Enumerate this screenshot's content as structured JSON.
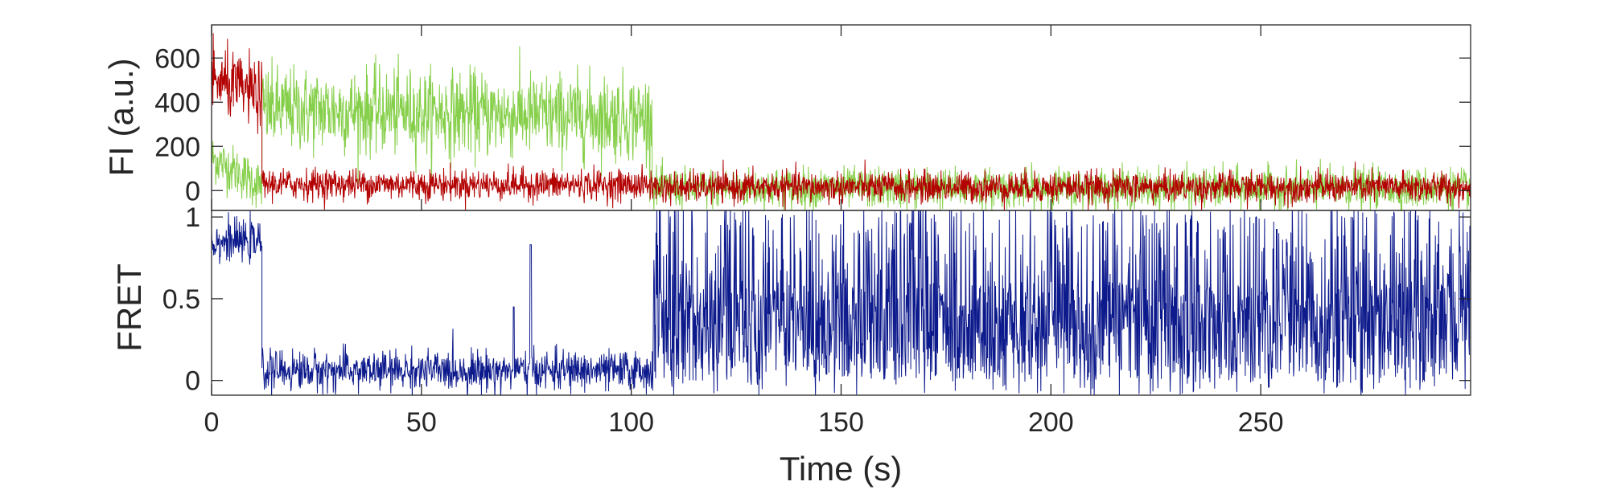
{
  "colors": {
    "acceptor": "#b30000",
    "donor": "#86cf4a",
    "fret": "#0d1a8c",
    "axes": "#262626",
    "background": "#ffffff"
  },
  "chart_data": [
    {
      "type": "line",
      "panel": "top",
      "title": "",
      "xlabel": "",
      "ylabel": "FI (a.u.)",
      "xlim": [
        0,
        300
      ],
      "ylim": [
        -90,
        750
      ],
      "xticks": [
        0,
        50,
        100,
        150,
        200,
        250
      ],
      "yticks": [
        0,
        200,
        400,
        600
      ],
      "ytick_labels": [
        "0",
        "200",
        "400",
        "600"
      ],
      "grid": false,
      "legend": "none",
      "segments_note_free": true,
      "series": [
        {
          "color_key": "donor",
          "segments": [
            {
              "x_start": 0,
              "x_end": 12,
              "start_mean": 150,
              "end_mean": 20,
              "noise": 55
            },
            {
              "x_start": 12,
              "x_end": 105,
              "start_mean": 370,
              "end_mean": 330,
              "noise": 95
            },
            {
              "x_start": 105,
              "x_end": 300,
              "start_mean": 10,
              "end_mean": 10,
              "noise": 45
            }
          ]
        },
        {
          "color_key": "acceptor",
          "segments": [
            {
              "x_start": 0,
              "x_end": 12,
              "start_mean": 500,
              "end_mean": 430,
              "noise": 75
            },
            {
              "x_start": 12,
              "x_end": 105,
              "start_mean": 30,
              "end_mean": 25,
              "noise": 35
            },
            {
              "x_start": 105,
              "x_end": 300,
              "start_mean": 15,
              "end_mean": 15,
              "noise": 35
            }
          ]
        }
      ]
    },
    {
      "type": "line",
      "panel": "bottom",
      "title": "",
      "xlabel": "Time (s)",
      "ylabel": "FRET",
      "xlim": [
        0,
        300
      ],
      "ylim": [
        -0.09,
        1.04
      ],
      "xticks": [
        0,
        50,
        100,
        150,
        200,
        250
      ],
      "xtick_labels": [
        "0",
        "50",
        "100",
        "150",
        "200",
        "250"
      ],
      "yticks": [
        0,
        0.5,
        1
      ],
      "ytick_labels": [
        "0",
        "0.5",
        "1"
      ],
      "grid": false,
      "legend": "none",
      "series": [
        {
          "color_key": "fret",
          "segments": [
            {
              "x_start": 0,
              "x_end": 12,
              "mean": 0.85,
              "noise": 0.06
            },
            {
              "x_start": 12,
              "x_end": 105,
              "mean": 0.06,
              "noise": 0.06
            },
            {
              "x_start": 105,
              "x_end": 300,
              "mean": 0.5,
              "noise": 0.55
            }
          ]
        }
      ]
    }
  ]
}
